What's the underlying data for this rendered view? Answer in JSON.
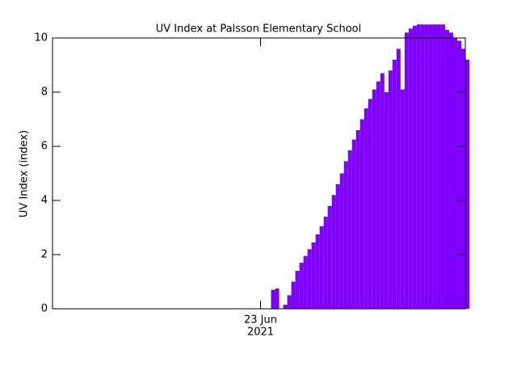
{
  "chart_data": {
    "type": "bar",
    "title": "UV Index at Palsson Elementary School",
    "ylabel": "UV Index (index)",
    "color": "#8000ff",
    "xlim": [
      0,
      102
    ],
    "xticks": [
      {
        "value": 51.4,
        "label": "23 Jun"
      }
    ],
    "xtick_sublabel": "2021",
    "ylim": [
      0,
      10
    ],
    "yticks": [
      0,
      2,
      4,
      6,
      8,
      10
    ],
    "values": [
      null,
      null,
      null,
      null,
      null,
      null,
      null,
      null,
      null,
      null,
      null,
      null,
      null,
      null,
      null,
      null,
      null,
      null,
      null,
      null,
      null,
      null,
      null,
      null,
      null,
      null,
      null,
      null,
      null,
      null,
      null,
      null,
      null,
      null,
      null,
      null,
      null,
      null,
      null,
      null,
      null,
      null,
      null,
      null,
      null,
      null,
      null,
      null,
      null,
      null,
      null,
      null,
      null,
      null,
      0.7,
      0.75,
      null,
      0.15,
      0.5,
      1.0,
      1.4,
      1.7,
      1.95,
      2.2,
      2.45,
      2.75,
      3.05,
      3.4,
      3.8,
      4.2,
      4.6,
      5.0,
      5.45,
      5.85,
      6.25,
      6.6,
      7.0,
      7.4,
      7.75,
      8.1,
      8.4,
      8.7,
      8.0,
      8.8,
      9.2,
      9.6,
      8.1,
      10.2,
      10.35,
      10.45,
      10.5,
      10.5,
      10.5,
      10.5,
      10.5,
      10.5,
      10.5,
      10.3,
      10.2,
      10.0,
      9.9,
      9.6,
      9.2
    ]
  }
}
